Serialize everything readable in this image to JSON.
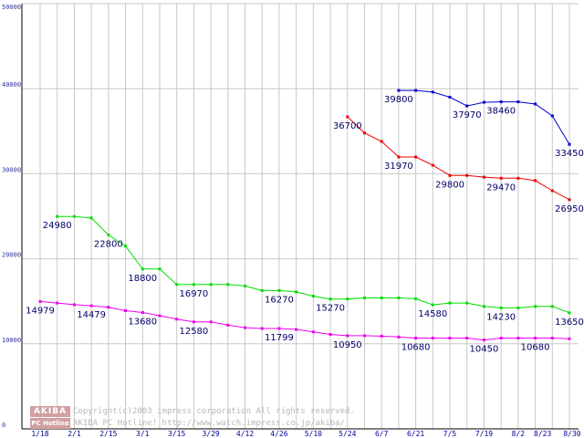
{
  "chart_data": {
    "type": "line",
    "title": "",
    "xlabel": "",
    "ylabel": "",
    "ylim": [
      0,
      50000
    ],
    "yticks": [
      0,
      10000,
      20000,
      30000,
      40000,
      50000
    ],
    "categories": [
      "1/18",
      "1/25",
      "2/1",
      "2/8",
      "2/15",
      "2/22",
      "3/1",
      "3/8",
      "3/15",
      "3/22",
      "3/29",
      "4/5",
      "4/12",
      "4/19",
      "4/26",
      "5/3",
      "5/10",
      "5/17",
      "5/24",
      "5/31",
      "6/7",
      "6/14",
      "6/21",
      "6/28",
      "7/5",
      "7/12",
      "7/19",
      "7/26",
      "8/2",
      "8/9",
      "8/23",
      "8/30"
    ],
    "xtick_labels": [
      "1/18",
      "2/1",
      "2/15",
      "3/1",
      "3/15",
      "3/29",
      "4/12",
      "4/26",
      "5/10",
      "5/24",
      "6/7",
      "6/21",
      "7/5",
      "7/19",
      "8/2",
      "8/23",
      "8/30"
    ],
    "grid": true,
    "series": [
      {
        "name": "blue",
        "color": "#0000cc",
        "values": [
          null,
          null,
          null,
          null,
          null,
          null,
          null,
          null,
          null,
          null,
          null,
          null,
          null,
          null,
          null,
          null,
          null,
          null,
          null,
          null,
          null,
          39800,
          39800,
          39600,
          39000,
          37970,
          38400,
          38460,
          38460,
          38200,
          36800,
          33450
        ],
        "labels": [
          {
            "i": 21,
            "text": "39800"
          },
          {
            "i": 25,
            "text": "37970"
          },
          {
            "i": 27,
            "text": "38460"
          },
          {
            "i": 31,
            "text": "33450"
          }
        ]
      },
      {
        "name": "red",
        "color": "#ee0000",
        "values": [
          null,
          null,
          null,
          null,
          null,
          null,
          null,
          null,
          null,
          null,
          null,
          null,
          null,
          null,
          null,
          null,
          null,
          null,
          36700,
          34800,
          33800,
          31970,
          31970,
          31000,
          29800,
          29800,
          29600,
          29470,
          29470,
          29200,
          28000,
          26950
        ],
        "labels": [
          {
            "i": 18,
            "text": "36700"
          },
          {
            "i": 21,
            "text": "31970"
          },
          {
            "i": 24,
            "text": "29800"
          },
          {
            "i": 27,
            "text": "29470"
          },
          {
            "i": 31,
            "text": "26950"
          }
        ]
      },
      {
        "name": "green",
        "color": "#00dd00",
        "values": [
          null,
          24980,
          24980,
          24800,
          22800,
          21500,
          18800,
          18800,
          16970,
          16970,
          16970,
          16970,
          16800,
          16270,
          16270,
          16100,
          15600,
          15270,
          15270,
          15400,
          15400,
          15400,
          15300,
          14580,
          14800,
          14800,
          14400,
          14230,
          14230,
          14400,
          14400,
          13650
        ],
        "labels": [
          {
            "i": 1,
            "text": "24980"
          },
          {
            "i": 4,
            "text": "22800"
          },
          {
            "i": 6,
            "text": "18800"
          },
          {
            "i": 9,
            "text": "16970"
          },
          {
            "i": 14,
            "text": "16270"
          },
          {
            "i": 17,
            "text": "15270"
          },
          {
            "i": 23,
            "text": "14580"
          },
          {
            "i": 27,
            "text": "14230"
          },
          {
            "i": 31,
            "text": "13650"
          }
        ]
      },
      {
        "name": "magenta",
        "color": "#ee00ee",
        "values": [
          14979,
          14800,
          14600,
          14479,
          14300,
          13900,
          13680,
          13300,
          12900,
          12580,
          12580,
          12200,
          11900,
          11799,
          11799,
          11700,
          11400,
          11100,
          10950,
          10950,
          10900,
          10800,
          10680,
          10680,
          10680,
          10680,
          10450,
          10680,
          10680,
          10680,
          10680,
          10600
        ],
        "labels": [
          {
            "i": 0,
            "text": "14979"
          },
          {
            "i": 3,
            "text": "14479"
          },
          {
            "i": 6,
            "text": "13680"
          },
          {
            "i": 9,
            "text": "12580"
          },
          {
            "i": 14,
            "text": "11799"
          },
          {
            "i": 18,
            "text": "10950"
          },
          {
            "i": 22,
            "text": "10680"
          },
          {
            "i": 26,
            "text": "10450"
          },
          {
            "i": 29,
            "text": "10680"
          }
        ]
      }
    ]
  },
  "watermark": {
    "line1": "Copyright(c)2003 impress corporation All rights reserved.",
    "line2": "AKIBA PC Hotline!  http://www.watch.impress.co.jp/akiba/"
  },
  "logo": {
    "top": "AKIBA",
    "bottom": "PC Hotline"
  },
  "colors": {
    "grid": "#c8c8c8",
    "axis": "#000000"
  }
}
